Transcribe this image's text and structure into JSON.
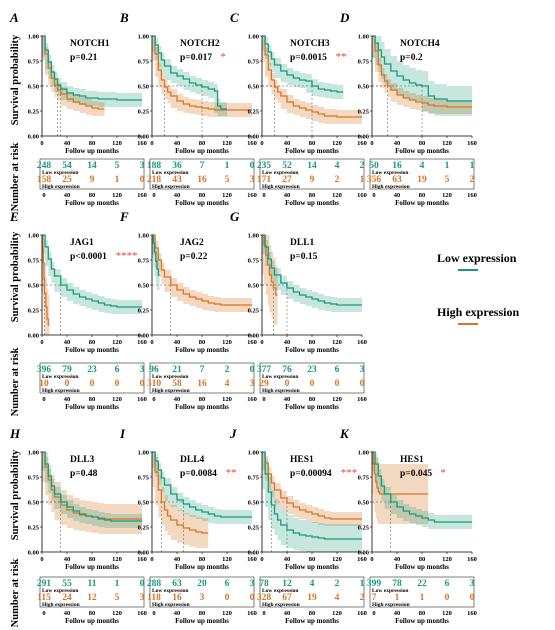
{
  "chart_data": {
    "type": "line",
    "colors": {
      "low": "#1a9a7a",
      "high": "#d97524",
      "stars": "#e8433a"
    },
    "y_axis_label": "Survival probability",
    "risk_axis_label": "Number at risk",
    "x_axis_label": "Follow up months",
    "y_ticks": [
      "0.00",
      "0.25",
      "0.50",
      "0.75",
      "1.00"
    ],
    "x_ticks": [
      "0",
      "40",
      "80",
      "120",
      "160"
    ],
    "x_range": [
      0,
      160
    ],
    "y_range": [
      0,
      1
    ],
    "legend": {
      "low": "Low expression",
      "high": "High expression"
    },
    "risk_labels": {
      "low": "Low expression",
      "high": "High expression"
    },
    "panels": [
      {
        "letter": "A",
        "gene": "NOTCH1",
        "pvalue": "p=0.21",
        "stars": "",
        "low": {
          "x": [
            0,
            5,
            10,
            15,
            20,
            25,
            30,
            40,
            50,
            60,
            70,
            90,
            120,
            160
          ],
          "y": [
            1.0,
            0.86,
            0.74,
            0.64,
            0.57,
            0.51,
            0.47,
            0.43,
            0.41,
            0.4,
            0.38,
            0.37,
            0.36,
            0.36
          ]
        },
        "high": {
          "x": [
            0,
            5,
            10,
            15,
            20,
            25,
            30,
            40,
            50,
            60,
            70,
            80,
            90,
            100
          ],
          "y": [
            1.0,
            0.82,
            0.68,
            0.58,
            0.51,
            0.46,
            0.42,
            0.37,
            0.34,
            0.32,
            0.3,
            0.28,
            0.27,
            0.27
          ]
        },
        "risk_low": [
          "248",
          "54",
          "14",
          "5",
          "3"
        ],
        "risk_high": [
          "158",
          "25",
          "9",
          "1",
          "0"
        ]
      },
      {
        "letter": "B",
        "gene": "NOTCH2",
        "pvalue": "p=0.017",
        "stars": "*",
        "low": {
          "x": [
            0,
            5,
            10,
            15,
            20,
            30,
            40,
            50,
            60,
            70,
            80,
            90,
            100,
            105,
            110,
            120
          ],
          "y": [
            1.0,
            0.91,
            0.83,
            0.76,
            0.7,
            0.63,
            0.6,
            0.57,
            0.53,
            0.51,
            0.49,
            0.47,
            0.45,
            0.3,
            0.27,
            0.27
          ]
        },
        "high": {
          "x": [
            0,
            5,
            10,
            15,
            20,
            25,
            30,
            40,
            50,
            60,
            70,
            80,
            90,
            100,
            120,
            160
          ],
          "y": [
            1.0,
            0.82,
            0.66,
            0.56,
            0.49,
            0.44,
            0.4,
            0.35,
            0.32,
            0.3,
            0.29,
            0.28,
            0.27,
            0.26,
            0.26,
            0.26
          ]
        },
        "risk_low": [
          "188",
          "36",
          "7",
          "1",
          "0"
        ],
        "risk_high": [
          "218",
          "43",
          "16",
          "5",
          "3"
        ]
      },
      {
        "letter": "C",
        "gene": "NOTCH3",
        "pvalue": "p=0.0015",
        "stars": "**",
        "low": {
          "x": [
            0,
            5,
            10,
            15,
            20,
            30,
            40,
            50,
            60,
            70,
            80,
            90,
            100,
            110,
            120,
            130
          ],
          "y": [
            1.0,
            0.92,
            0.84,
            0.77,
            0.71,
            0.65,
            0.61,
            0.58,
            0.56,
            0.55,
            0.5,
            0.47,
            0.46,
            0.45,
            0.44,
            0.44
          ]
        },
        "high": {
          "x": [
            0,
            5,
            10,
            15,
            20,
            25,
            30,
            40,
            50,
            60,
            70,
            80,
            90,
            100,
            120,
            160
          ],
          "y": [
            1.0,
            0.81,
            0.66,
            0.56,
            0.49,
            0.44,
            0.4,
            0.34,
            0.3,
            0.28,
            0.26,
            0.24,
            0.22,
            0.2,
            0.19,
            0.19
          ]
        },
        "risk_low": [
          "235",
          "52",
          "14",
          "4",
          "2"
        ],
        "risk_high": [
          "171",
          "27",
          "9",
          "2",
          "1"
        ]
      },
      {
        "letter": "D",
        "gene": "NOTCH4",
        "pvalue": "p=0.2",
        "stars": "",
        "low": {
          "x": [
            0,
            5,
            10,
            15,
            20,
            30,
            40,
            50,
            60,
            70,
            80,
            90,
            100,
            120,
            160
          ],
          "y": [
            1.0,
            0.93,
            0.86,
            0.79,
            0.72,
            0.65,
            0.6,
            0.56,
            0.53,
            0.51,
            0.5,
            0.4,
            0.37,
            0.35,
            0.35
          ]
        },
        "high": {
          "x": [
            0,
            5,
            10,
            15,
            20,
            25,
            30,
            40,
            50,
            60,
            70,
            80,
            90,
            100,
            120,
            160
          ],
          "y": [
            1.0,
            0.85,
            0.71,
            0.61,
            0.55,
            0.5,
            0.46,
            0.41,
            0.38,
            0.36,
            0.34,
            0.33,
            0.31,
            0.3,
            0.29,
            0.29
          ]
        },
        "risk_low": [
          "50",
          "16",
          "4",
          "1",
          "1"
        ],
        "risk_high": [
          "356",
          "63",
          "19",
          "5",
          "2"
        ]
      },
      {
        "letter": "E",
        "gene": "JAG1",
        "pvalue": "p<0.0001",
        "stars": "****",
        "low": {
          "x": [
            0,
            5,
            10,
            15,
            20,
            30,
            40,
            50,
            60,
            70,
            80,
            90,
            100,
            110,
            120,
            160
          ],
          "y": [
            1.0,
            0.88,
            0.76,
            0.66,
            0.59,
            0.5,
            0.45,
            0.41,
            0.38,
            0.36,
            0.34,
            0.32,
            0.3,
            0.29,
            0.28,
            0.28
          ]
        },
        "high": {
          "x": [
            0,
            1,
            2,
            3,
            4,
            6,
            8,
            10,
            12
          ],
          "y": [
            1.0,
            0.86,
            0.72,
            0.56,
            0.42,
            0.28,
            0.16,
            0.1,
            0.1
          ]
        },
        "risk_low": [
          "396",
          "79",
          "23",
          "6",
          "3"
        ],
        "risk_high": [
          "10",
          "0",
          "0",
          "0",
          "0"
        ]
      },
      {
        "letter": "F",
        "gene": "JAG2",
        "pvalue": "p=0.22",
        "stars": "",
        "low": {
          "x": [
            0,
            2,
            4,
            6,
            8,
            10,
            12
          ],
          "y": [
            1.0,
            0.92,
            0.83,
            0.74,
            0.66,
            0.6,
            0.6
          ]
        },
        "high": {
          "x": [
            0,
            5,
            10,
            15,
            20,
            30,
            40,
            50,
            60,
            70,
            80,
            90,
            100,
            110,
            120,
            160
          ],
          "y": [
            1.0,
            0.87,
            0.75,
            0.65,
            0.58,
            0.5,
            0.45,
            0.41,
            0.38,
            0.36,
            0.34,
            0.32,
            0.31,
            0.3,
            0.3,
            0.3
          ]
        },
        "risk_low": [
          "96",
          "21",
          "7",
          "2",
          "0"
        ],
        "risk_high": [
          "310",
          "58",
          "16",
          "4",
          "3"
        ]
      },
      {
        "letter": "G",
        "gene": "DLL1",
        "pvalue": "p=0.15",
        "stars": "",
        "low": {
          "x": [
            0,
            5,
            10,
            15,
            20,
            30,
            40,
            50,
            60,
            70,
            80,
            90,
            100,
            110,
            120,
            160
          ],
          "y": [
            1.0,
            0.88,
            0.76,
            0.67,
            0.6,
            0.52,
            0.47,
            0.43,
            0.4,
            0.38,
            0.36,
            0.34,
            0.32,
            0.31,
            0.3,
            0.3
          ]
        },
        "high": {
          "x": [
            0,
            3,
            6,
            9,
            12,
            15,
            18,
            22,
            25
          ],
          "y": [
            1.0,
            0.9,
            0.8,
            0.7,
            0.6,
            0.53,
            0.47,
            0.4,
            0.4
          ]
        },
        "risk_low": [
          "377",
          "76",
          "23",
          "6",
          "3"
        ],
        "risk_high": [
          "29",
          "0",
          "0",
          "0",
          "0"
        ]
      },
      {
        "letter": "H",
        "gene": "DLL3",
        "pvalue": "p=0.48",
        "stars": "",
        "low": {
          "x": [
            0,
            5,
            10,
            15,
            20,
            30,
            40,
            50,
            60,
            70,
            80,
            90,
            100,
            110,
            120,
            160
          ],
          "y": [
            1.0,
            0.88,
            0.76,
            0.66,
            0.58,
            0.5,
            0.45,
            0.41,
            0.38,
            0.36,
            0.35,
            0.33,
            0.32,
            0.31,
            0.31,
            0.31
          ]
        },
        "high": {
          "x": [
            0,
            5,
            10,
            15,
            20,
            30,
            40,
            50,
            60,
            70,
            80,
            90,
            100,
            120,
            160
          ],
          "y": [
            1.0,
            0.85,
            0.72,
            0.62,
            0.55,
            0.47,
            0.42,
            0.39,
            0.37,
            0.36,
            0.35,
            0.34,
            0.33,
            0.33,
            0.33
          ]
        },
        "risk_low": [
          "291",
          "55",
          "11",
          "1",
          "0"
        ],
        "risk_high": [
          "115",
          "24",
          "12",
          "5",
          "3"
        ]
      },
      {
        "letter": "I",
        "gene": "DLL4",
        "pvalue": "p=0.0084",
        "stars": "**",
        "low": {
          "x": [
            0,
            5,
            10,
            15,
            20,
            30,
            40,
            50,
            60,
            70,
            80,
            90,
            100,
            110,
            120,
            160
          ],
          "y": [
            1.0,
            0.91,
            0.82,
            0.74,
            0.67,
            0.58,
            0.52,
            0.48,
            0.45,
            0.42,
            0.4,
            0.38,
            0.36,
            0.35,
            0.35,
            0.35
          ]
        },
        "high": {
          "x": [
            0,
            5,
            10,
            15,
            20,
            25,
            30,
            40,
            50,
            60,
            70,
            80,
            90
          ],
          "y": [
            1.0,
            0.8,
            0.62,
            0.5,
            0.42,
            0.36,
            0.32,
            0.27,
            0.24,
            0.22,
            0.2,
            0.19,
            0.19
          ]
        },
        "risk_low": [
          "288",
          "63",
          "20",
          "6",
          "3"
        ],
        "risk_high": [
          "118",
          "16",
          "3",
          "0",
          "0"
        ]
      },
      {
        "letter": "J",
        "gene": "HES1",
        "pvalue": "p=0.00094",
        "stars": "***",
        "low": {
          "x": [
            0,
            5,
            10,
            15,
            20,
            25,
            30,
            40,
            50,
            60,
            70,
            80,
            90,
            100,
            120,
            160
          ],
          "y": [
            1.0,
            0.78,
            0.6,
            0.47,
            0.38,
            0.32,
            0.27,
            0.22,
            0.19,
            0.17,
            0.16,
            0.15,
            0.14,
            0.13,
            0.13,
            0.13
          ]
        },
        "high": {
          "x": [
            0,
            5,
            10,
            15,
            20,
            30,
            40,
            50,
            60,
            70,
            80,
            90,
            100,
            110,
            120,
            160
          ],
          "y": [
            1.0,
            0.89,
            0.78,
            0.69,
            0.62,
            0.54,
            0.49,
            0.45,
            0.42,
            0.4,
            0.38,
            0.36,
            0.34,
            0.33,
            0.33,
            0.33
          ]
        },
        "risk_low": [
          "78",
          "12",
          "4",
          "2",
          "1"
        ],
        "risk_high": [
          "328",
          "67",
          "19",
          "4",
          "2"
        ]
      },
      {
        "letter": "K",
        "gene": "HES1",
        "pvalue": "p=0.045",
        "stars": "*",
        "low": {
          "x": [
            0,
            5,
            10,
            15,
            20,
            30,
            40,
            50,
            60,
            70,
            80,
            90,
            100,
            110,
            120,
            160
          ],
          "y": [
            1.0,
            0.88,
            0.76,
            0.66,
            0.58,
            0.5,
            0.45,
            0.41,
            0.38,
            0.36,
            0.34,
            0.32,
            0.3,
            0.3,
            0.3,
            0.3
          ]
        },
        "high": {
          "x": [
            0,
            2,
            4,
            6,
            8,
            10,
            12,
            20,
            40,
            60,
            90
          ],
          "y": [
            1.0,
            0.88,
            0.78,
            0.7,
            0.64,
            0.6,
            0.58,
            0.58,
            0.58,
            0.58,
            0.58
          ]
        },
        "risk_low": [
          "399",
          "78",
          "22",
          "6",
          "3"
        ],
        "risk_high": [
          "7",
          "1",
          "1",
          "0",
          "0"
        ]
      }
    ]
  }
}
